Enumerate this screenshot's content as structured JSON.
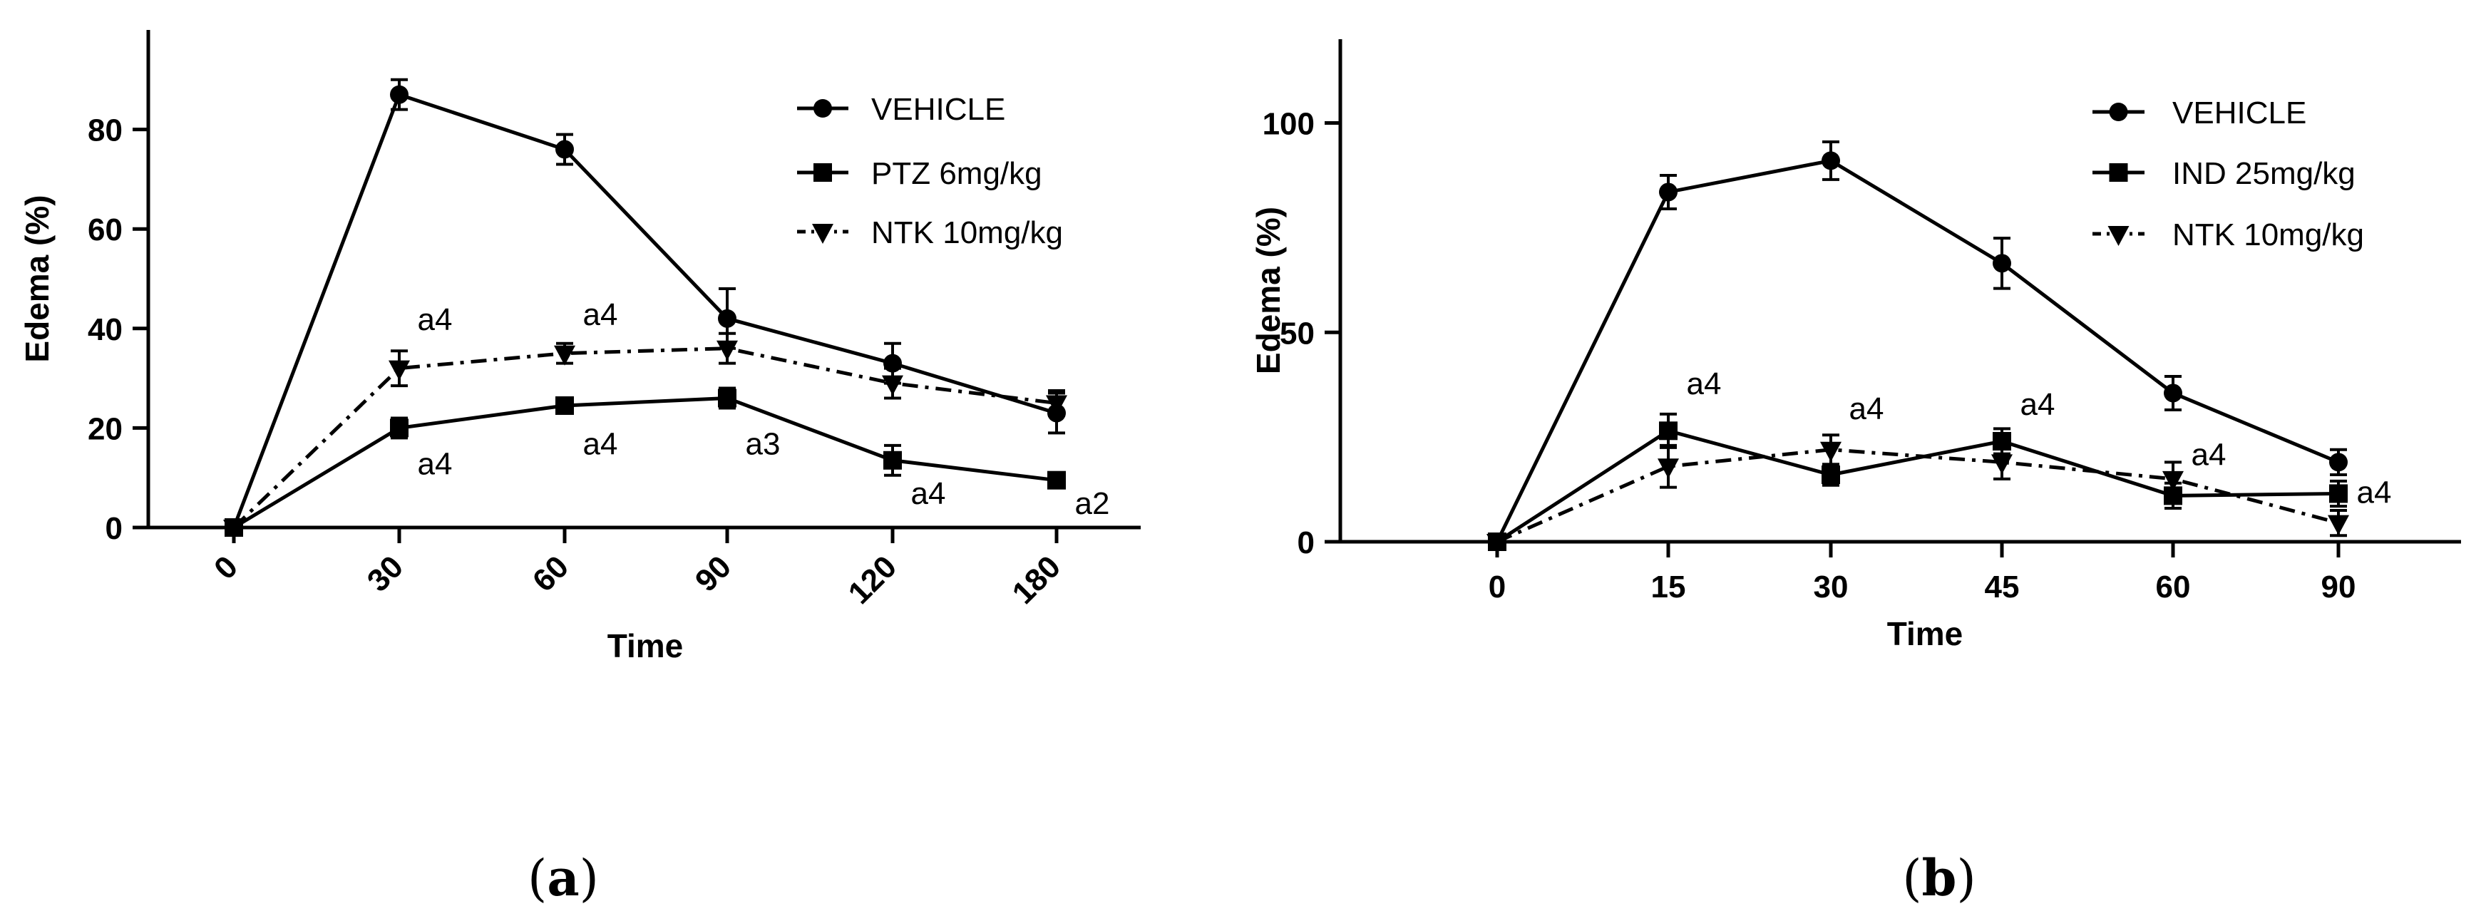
{
  "chart_data": [
    {
      "type": "line",
      "panel_label": "a",
      "xlabel": "Time",
      "ylabel": "Edema (%)",
      "categories": [
        "0",
        "30",
        "60",
        "90",
        "120",
        "180"
      ],
      "ylim": [
        0,
        100
      ],
      "y_ticks": [
        0,
        20,
        40,
        60,
        80
      ],
      "x_tick_rotation": -45,
      "grid": false,
      "legend_position": "top-right",
      "series": [
        {
          "name": "VEHICLE",
          "marker": "circle",
          "line": "solid",
          "values": [
            0,
            87,
            76,
            42,
            33,
            23
          ],
          "errors": [
            0,
            3,
            3,
            6,
            4,
            4
          ]
        },
        {
          "name": "PTZ 6mg/kg",
          "marker": "square",
          "line": "solid",
          "values": [
            0,
            20,
            24.5,
            26,
            13.5,
            9.5
          ],
          "errors": [
            0,
            2,
            1.5,
            2,
            3,
            1.5
          ]
        },
        {
          "name": "NTK 10mg/kg",
          "marker": "triangle-down",
          "line": "dash-dot",
          "values": [
            0,
            32,
            35,
            36,
            29,
            25
          ],
          "errors": [
            0,
            3.5,
            2,
            3,
            3,
            2.5
          ]
        }
      ],
      "annotations": [
        {
          "text": "a4",
          "category": 1,
          "y": 42
        },
        {
          "text": "a4",
          "category": 2,
          "y": 43
        },
        {
          "text": "a4",
          "category": 1,
          "y": 13
        },
        {
          "text": "a4",
          "category": 2,
          "y": 17
        },
        {
          "text": "a3",
          "category": 3,
          "y": 17
        },
        {
          "text": "a4",
          "category": 4,
          "y": 7
        },
        {
          "text": "a2",
          "category": 5,
          "y": 5
        }
      ]
    },
    {
      "type": "line",
      "panel_label": "b",
      "xlabel": "Time",
      "ylabel": "Edema (%)",
      "categories": [
        "0",
        "15",
        "30",
        "45",
        "60",
        "90"
      ],
      "ylim": [
        0,
        120
      ],
      "y_ticks": [
        0,
        50,
        100
      ],
      "x_tick_rotation": 0,
      "grid": false,
      "legend_position": "top-right",
      "series": [
        {
          "name": "VEHICLE",
          "marker": "circle",
          "line": "solid",
          "values": [
            0,
            83.5,
            91,
            66.5,
            35.5,
            19
          ],
          "errors": [
            0,
            4,
            4.5,
            6,
            4,
            3
          ]
        },
        {
          "name": "IND 25mg/kg",
          "marker": "square",
          "line": "solid",
          "values": [
            0,
            26.5,
            16,
            24,
            11,
            11.5
          ],
          "errors": [
            0,
            4,
            2.5,
            3,
            3,
            3
          ]
        },
        {
          "name": "NTK 10mg/kg",
          "marker": "triangle-down",
          "line": "dash-dot",
          "values": [
            0,
            18,
            22,
            19,
            15,
            4.5
          ],
          "errors": [
            0,
            5,
            3.5,
            4,
            4,
            3
          ]
        }
      ],
      "annotations": [
        {
          "text": "a4",
          "category": 1,
          "y": 38
        },
        {
          "text": "a4",
          "category": 2,
          "y": 32
        },
        {
          "text": "a4",
          "category": 3,
          "y": 33
        },
        {
          "text": "a4",
          "category": 4,
          "y": 21
        },
        {
          "text": "a4",
          "category": 5,
          "y": 12
        }
      ]
    }
  ],
  "captions": [
    {
      "label": "a"
    },
    {
      "label": "b"
    }
  ]
}
